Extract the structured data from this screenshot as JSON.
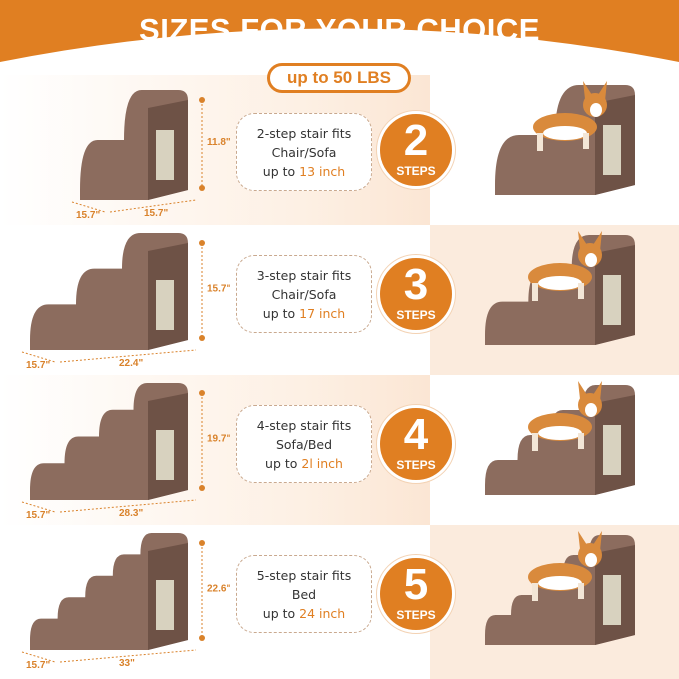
{
  "header": {
    "title": "SIZES FOR YOUR CHOICE",
    "weight_limit": "up to 50 LBS"
  },
  "colors": {
    "accent": "#E07F22",
    "stair_brown": "#8a6a5c",
    "peach": "#fbe6d4"
  },
  "rows": [
    {
      "steps": 2,
      "badge_number": "2",
      "badge_label": "STEPS",
      "line1": "2-step stair fits",
      "line2": "Chair/Sofa",
      "line3_prefix": "up to ",
      "line3_value": "13 inch",
      "height": "11.8\"",
      "depth": "15.7\"",
      "length": "15.7\""
    },
    {
      "steps": 3,
      "badge_number": "3",
      "badge_label": "STEPS",
      "line1": "3-step stair fits",
      "line2": "Chair/Sofa",
      "line3_prefix": "up to ",
      "line3_value": "17 inch",
      "height": "15.7\"",
      "depth": "15.7\"",
      "length": "22.4\""
    },
    {
      "steps": 4,
      "badge_number": "4",
      "badge_label": "STEPS",
      "line1": "4-step stair fits",
      "line2": "Sofa/Bed",
      "line3_prefix": "up to ",
      "line3_value": "2l inch",
      "height": "19.7\"",
      "depth": "15.7\"",
      "length": "28.3\""
    },
    {
      "steps": 5,
      "badge_number": "5",
      "badge_label": "STEPS",
      "line1": "5-step stair fits",
      "line2": "Bed",
      "line3_prefix": "up to ",
      "line3_value": "24 inch",
      "height": "22.6\"",
      "depth": "15.7\"",
      "length": "33\""
    }
  ]
}
